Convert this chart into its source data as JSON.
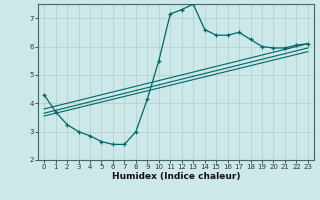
{
  "xlabel": "Humidex (Indice chaleur)",
  "ylabel": "",
  "bg_color": "#cce8e8",
  "grid_color": "#b0cccc",
  "line_color": "#006666",
  "xlim": [
    -0.5,
    23.5
  ],
  "ylim": [
    2,
    7.5
  ],
  "yticks": [
    2,
    3,
    4,
    5,
    6,
    7
  ],
  "xticks": [
    0,
    1,
    2,
    3,
    4,
    5,
    6,
    7,
    8,
    9,
    10,
    11,
    12,
    13,
    14,
    15,
    16,
    17,
    18,
    19,
    20,
    21,
    22,
    23
  ],
  "main_line_x": [
    0,
    1,
    2,
    3,
    4,
    5,
    6,
    7,
    8,
    9,
    10,
    11,
    12,
    13,
    14,
    15,
    16,
    17,
    18,
    19,
    20,
    21,
    22,
    23
  ],
  "main_line_y": [
    4.3,
    3.7,
    3.25,
    3.0,
    2.85,
    2.65,
    2.55,
    2.55,
    3.0,
    4.15,
    5.5,
    7.15,
    7.3,
    7.5,
    6.6,
    6.4,
    6.4,
    6.5,
    6.25,
    6.0,
    5.95,
    5.95,
    6.05,
    6.1
  ],
  "line2_x": [
    0,
    23
  ],
  "line2_y": [
    3.8,
    6.1
  ],
  "line3_x": [
    0,
    23
  ],
  "line3_y": [
    3.65,
    5.95
  ],
  "line4_x": [
    0,
    23
  ],
  "line4_y": [
    3.55,
    5.82
  ]
}
